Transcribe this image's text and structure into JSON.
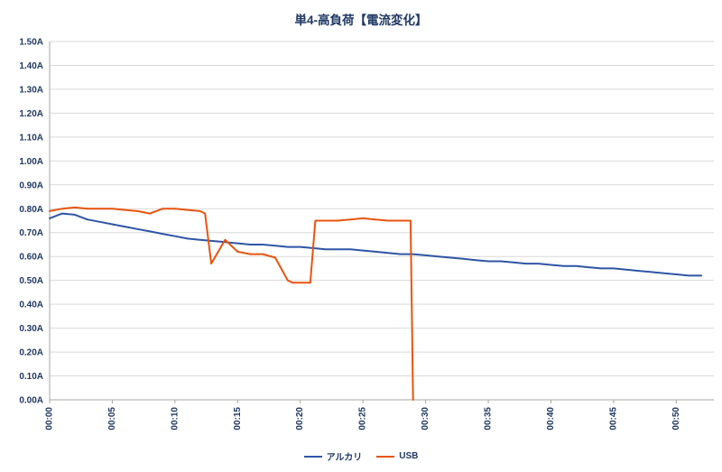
{
  "page": {
    "title": "単4-高負荷【電流変化】"
  },
  "chart_data": {
    "type": "line",
    "title": "単4-高負荷【電流変化】",
    "xlabel": "",
    "ylabel": "",
    "x_unit": "elapsed time (mm:ss)",
    "xlim": [
      0,
      53
    ],
    "ylim": [
      0,
      1.5
    ],
    "y_tick_step": 0.1,
    "y_tick_suffix": "A",
    "x_tick_minutes": [
      0,
      5,
      10,
      15,
      20,
      25,
      30,
      35,
      40,
      45,
      50
    ],
    "x_tick_labels": [
      "00:00",
      "00:05",
      "00:10",
      "00:15",
      "00:20",
      "00:25",
      "00:30",
      "00:35",
      "00:40",
      "00:45",
      "00:50"
    ],
    "grid": "horizontal",
    "grid_color": "#D9D9D9",
    "axis_color": "#A6A6A6",
    "label_color": "#1F3864",
    "legend_position": "bottom",
    "series": [
      {
        "name": "アルカリ",
        "color": "#2E55A5",
        "y": [
          0.76,
          0.78,
          0.775,
          0.755,
          0.745,
          0.735,
          0.725,
          0.715,
          0.705,
          0.695,
          0.685,
          0.675,
          0.67,
          0.665,
          0.66,
          0.655,
          0.65,
          0.65,
          0.645,
          0.64,
          0.64,
          0.635,
          0.63,
          0.63,
          0.63,
          0.625,
          0.62,
          0.615,
          0.61,
          0.61,
          0.605,
          0.6,
          0.595,
          0.59,
          0.585,
          0.58,
          0.58,
          0.575,
          0.57,
          0.57,
          0.565,
          0.56,
          0.56,
          0.555,
          0.55,
          0.55,
          0.545,
          0.54,
          0.535,
          0.53,
          0.525,
          0.52,
          0.52
        ]
      },
      {
        "name": "USB",
        "color": "#E8540F",
        "x": [
          0,
          1,
          2,
          3,
          4,
          5,
          6,
          7,
          8,
          9,
          10,
          11,
          12,
          12.4,
          12.9,
          14,
          15,
          16,
          17,
          18,
          19,
          19.4,
          20.8,
          21.2,
          22,
          23,
          24,
          25,
          26,
          27,
          28,
          28.8,
          29
        ],
        "y": [
          0.79,
          0.8,
          0.805,
          0.8,
          0.8,
          0.8,
          0.795,
          0.79,
          0.78,
          0.8,
          0.8,
          0.795,
          0.79,
          0.78,
          0.57,
          0.67,
          0.62,
          0.61,
          0.61,
          0.595,
          0.5,
          0.49,
          0.49,
          0.75,
          0.75,
          0.75,
          0.755,
          0.76,
          0.755,
          0.75,
          0.75,
          0.75,
          0.0
        ]
      }
    ]
  }
}
